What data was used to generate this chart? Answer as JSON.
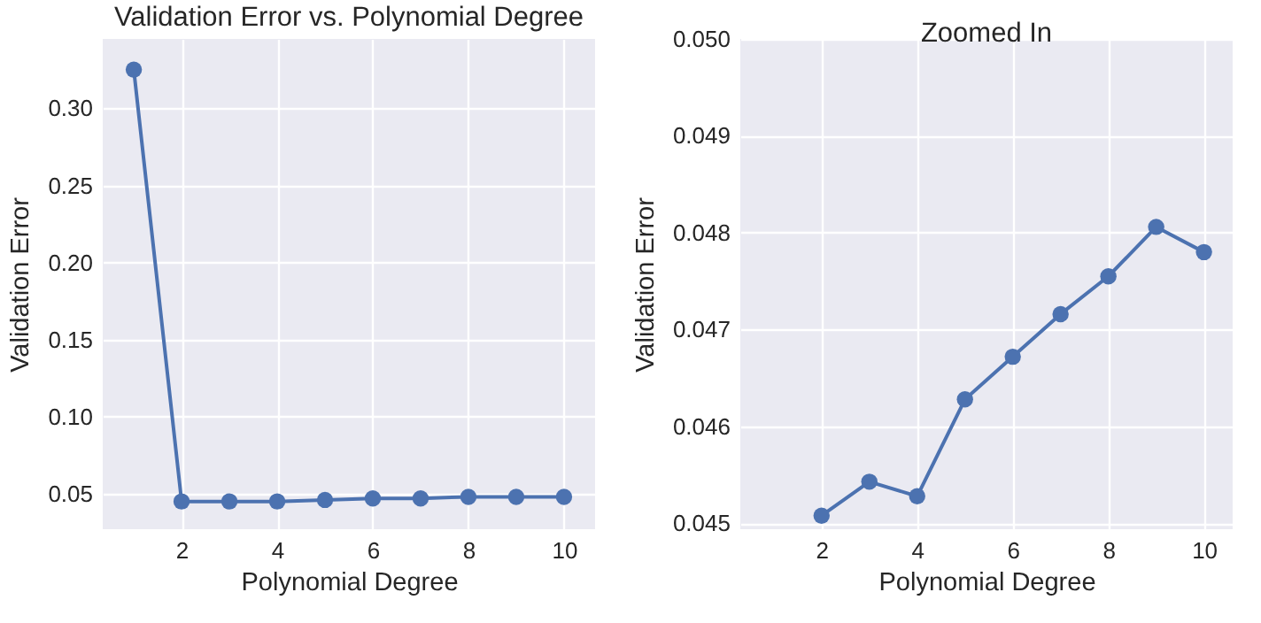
{
  "chart_data": [
    {
      "type": "line",
      "title": "Validation Error vs. Polynomial Degree",
      "xlabel": "Polynomial Degree",
      "ylabel": "Validation Error",
      "x": [
        1,
        2,
        3,
        4,
        5,
        6,
        7,
        8,
        9,
        10
      ],
      "series": [
        {
          "color": "#4c72b0",
          "values": [
            0.325,
            0.045,
            0.045,
            0.045,
            0.046,
            0.047,
            0.047,
            0.048,
            0.048,
            0.048
          ]
        }
      ],
      "xlim": [
        0.35,
        10.65
      ],
      "ylim": [
        0.027,
        0.345
      ],
      "xticks": [
        2,
        4,
        6,
        8,
        10
      ],
      "yticks": [
        {
          "value": 0.05,
          "label": "0.05"
        },
        {
          "value": 0.1,
          "label": "0.10"
        },
        {
          "value": 0.15,
          "label": "0.15"
        },
        {
          "value": 0.2,
          "label": "0.20"
        },
        {
          "value": 0.25,
          "label": "0.25"
        },
        {
          "value": 0.3,
          "label": "0.30"
        }
      ],
      "grid": true,
      "marker": "circle",
      "line_style": "solid"
    },
    {
      "type": "line",
      "title": "Zoomed In",
      "xlabel": "Polynomial Degree",
      "ylabel": "Validation Error",
      "x": [
        2,
        3,
        4,
        5,
        6,
        7,
        8,
        9,
        10
      ],
      "series": [
        {
          "color": "#4c72b0",
          "values": [
            0.04508,
            0.04543,
            0.04528,
            0.04628,
            0.04672,
            0.04716,
            0.04755,
            0.04806,
            0.0478
          ]
        }
      ],
      "xlim": [
        0.3,
        10.6
      ],
      "ylim": [
        0.04494,
        0.05
      ],
      "xticks": [
        2,
        4,
        6,
        8,
        10
      ],
      "yticks": [
        {
          "value": 0.045,
          "label": "0.045"
        },
        {
          "value": 0.046,
          "label": "0.046"
        },
        {
          "value": 0.047,
          "label": "0.047"
        },
        {
          "value": 0.048,
          "label": "0.048"
        },
        {
          "value": 0.049,
          "label": "0.049"
        },
        {
          "value": 0.05,
          "label": "0.050"
        }
      ],
      "grid": true,
      "marker": "circle",
      "line_style": "solid"
    }
  ]
}
